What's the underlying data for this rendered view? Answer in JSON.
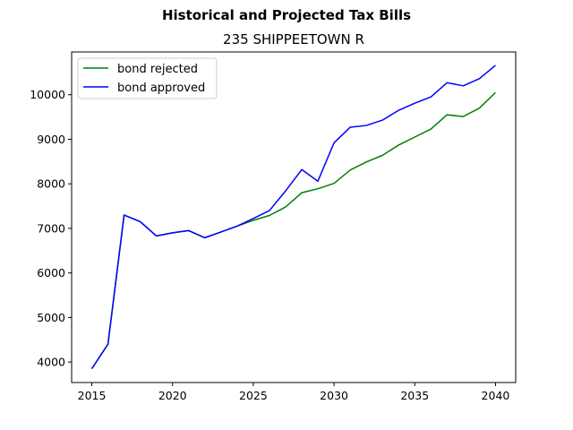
{
  "chart_data": {
    "type": "line",
    "suptitle": "Historical and Projected Tax Bills",
    "title": "235 SHIPPEETOWN R",
    "xlabel": "",
    "ylabel": "",
    "xlim": [
      2013.75,
      2041.25
    ],
    "ylim": [
      3540,
      10960
    ],
    "xticks": [
      2015,
      2020,
      2025,
      2030,
      2035,
      2040
    ],
    "yticks": [
      4000,
      5000,
      6000,
      7000,
      8000,
      9000,
      10000
    ],
    "grid": false,
    "legend_position": "upper left",
    "x": [
      2015,
      2016,
      2017,
      2018,
      2019,
      2020,
      2021,
      2022,
      2023,
      2024,
      2025,
      2026,
      2027,
      2028,
      2029,
      2030,
      2031,
      2032,
      2033,
      2034,
      2035,
      2036,
      2037,
      2038,
      2039,
      2040
    ],
    "series": [
      {
        "name": "bond rejected",
        "color": "#008000",
        "values": [
          3850,
          4400,
          7300,
          7150,
          6830,
          6900,
          6950,
          6790,
          6920,
          7050,
          7180,
          7290,
          7480,
          7800,
          7890,
          8010,
          8310,
          8490,
          8640,
          8870,
          9050,
          9230,
          9550,
          9510,
          9700,
          10050
        ]
      },
      {
        "name": "bond approved",
        "color": "#0000ff",
        "values": [
          3850,
          4400,
          7300,
          7150,
          6830,
          6900,
          6950,
          6790,
          6920,
          7050,
          7220,
          7400,
          7840,
          8320,
          8060,
          8920,
          9270,
          9310,
          9430,
          9650,
          9810,
          9950,
          10270,
          10200,
          10360,
          10660
        ]
      }
    ]
  }
}
